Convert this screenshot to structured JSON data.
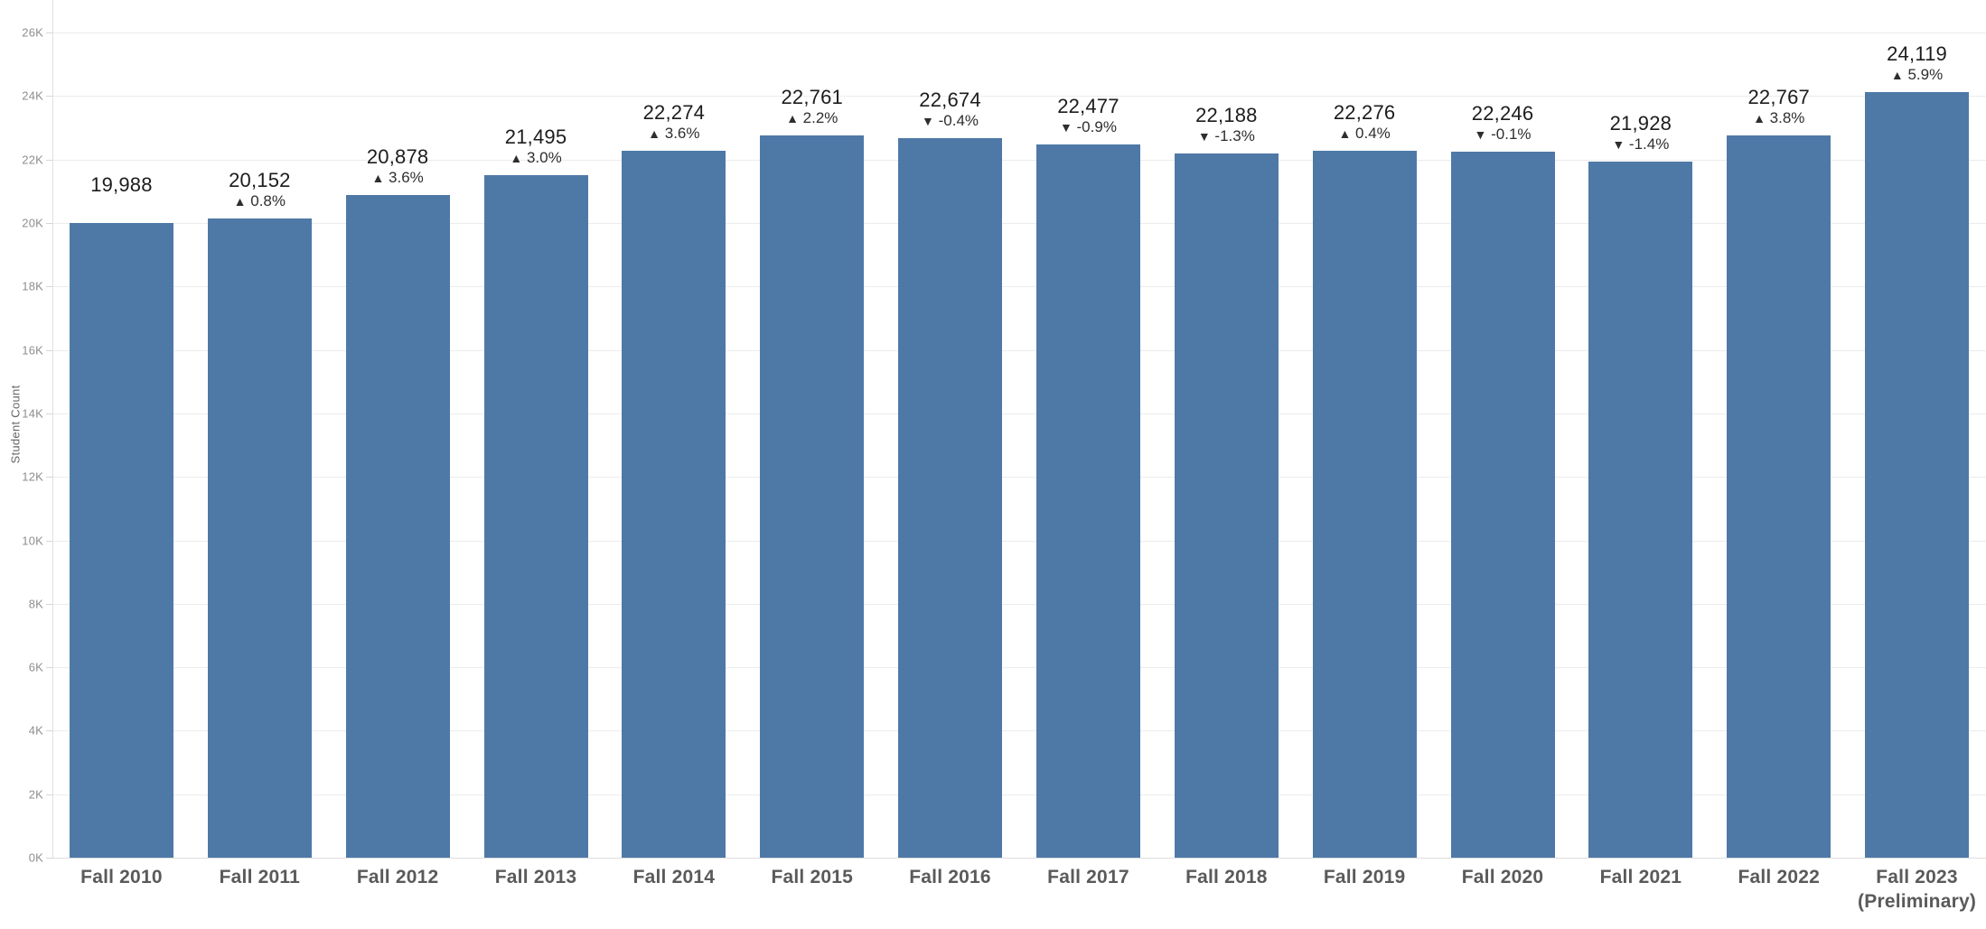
{
  "chart_data": {
    "type": "bar",
    "title": "",
    "xlabel": "",
    "ylabel": "Student Count",
    "ylim": [
      0,
      26000
    ],
    "ytick_step": 2000,
    "ytick_labels": [
      "0K",
      "2K",
      "4K",
      "6K",
      "8K",
      "10K",
      "12K",
      "14K",
      "16K",
      "18K",
      "20K",
      "22K",
      "24K",
      "26K"
    ],
    "grid": "horizontal",
    "legend_position": "none",
    "categories": [
      "Fall 2010",
      "Fall 2011",
      "Fall 2012",
      "Fall 2013",
      "Fall 2014",
      "Fall 2015",
      "Fall 2016",
      "Fall 2017",
      "Fall 2018",
      "Fall 2019",
      "Fall 2020",
      "Fall 2021",
      "Fall 2022",
      "Fall 2023 (Preliminary)"
    ],
    "category_display_lines": [
      [
        "Fall 2010"
      ],
      [
        "Fall 2011"
      ],
      [
        "Fall 2012"
      ],
      [
        "Fall 2013"
      ],
      [
        "Fall 2014"
      ],
      [
        "Fall 2015"
      ],
      [
        "Fall 2016"
      ],
      [
        "Fall 2017"
      ],
      [
        "Fall 2018"
      ],
      [
        "Fall 2019"
      ],
      [
        "Fall 2020"
      ],
      [
        "Fall 2021"
      ],
      [
        "Fall 2022"
      ],
      [
        "Fall 2023",
        "(Preliminary)"
      ]
    ],
    "values": [
      19988,
      20152,
      20878,
      21495,
      22274,
      22761,
      22674,
      22477,
      22188,
      22276,
      22246,
      21928,
      22767,
      24119
    ],
    "value_labels": [
      "19,988",
      "20,152",
      "20,878",
      "21,495",
      "22,274",
      "22,761",
      "22,674",
      "22,477",
      "22,188",
      "22,276",
      "22,246",
      "21,928",
      "22,767",
      "24,119"
    ],
    "pct_change": [
      null,
      "0.8%",
      "3.6%",
      "3.0%",
      "3.6%",
      "2.2%",
      "-0.4%",
      "-0.9%",
      "-1.3%",
      "0.4%",
      "-0.1%",
      "-1.4%",
      "3.8%",
      "5.9%"
    ],
    "pct_direction": [
      null,
      "up",
      "up",
      "up",
      "up",
      "up",
      "down",
      "down",
      "down",
      "up",
      "down",
      "down",
      "up",
      "up"
    ]
  },
  "glyphs": {
    "arrow_up": "▲",
    "arrow_down": "▼"
  },
  "colors": {
    "bar": "#4e79a7",
    "grid_line": "#ececec",
    "baseline": "#dddddd",
    "axis_line": "#e0e0e0",
    "tick_mark": "#d6d6d6",
    "y_tick_label": "#8e8e8e",
    "x_tick_label": "#5a5a5a",
    "value_label": "#1c1c1c",
    "pct_label": "#2e2e2e",
    "y_axis_title": "#666666"
  }
}
